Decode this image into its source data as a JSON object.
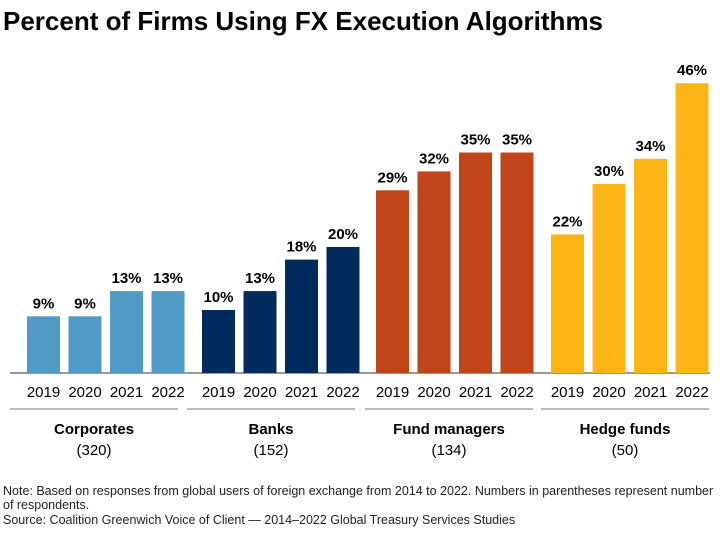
{
  "chart_data": {
    "type": "bar",
    "title": "Percent of Firms Using FX Execution Algorithms",
    "xlabel": "",
    "ylabel": "",
    "ylim": [
      0,
      46
    ],
    "grid": false,
    "legend": "none",
    "value_suffix": "%",
    "groups": [
      {
        "name": "Corporates",
        "count": "(320)",
        "color": "#4F9BC6",
        "categories": [
          "2019",
          "2020",
          "2021",
          "2022"
        ],
        "values": [
          9,
          9,
          13,
          13
        ]
      },
      {
        "name": "Banks",
        "count": "(152)",
        "color": "#002B5C",
        "categories": [
          "2019",
          "2020",
          "2021",
          "2022"
        ],
        "values": [
          10,
          13,
          18,
          20
        ]
      },
      {
        "name": "Fund managers",
        "count": "(134)",
        "color": "#C0461A",
        "categories": [
          "2019",
          "2020",
          "2021",
          "2022"
        ],
        "values": [
          29,
          32,
          35,
          35
        ]
      },
      {
        "name": "Hedge funds",
        "count": "(50)",
        "color": "#FDB515",
        "categories": [
          "2019",
          "2020",
          "2021",
          "2022"
        ],
        "values": [
          22,
          30,
          34,
          46
        ]
      }
    ]
  },
  "footer": {
    "note": "Note: Based on responses from global users of foreign exchange from 2014 to 2022. Numbers in parentheses represent number of respondents.",
    "source": "Source: Coalition Greenwich Voice of Client — 2014–2022 Global Treasury Services Studies"
  }
}
